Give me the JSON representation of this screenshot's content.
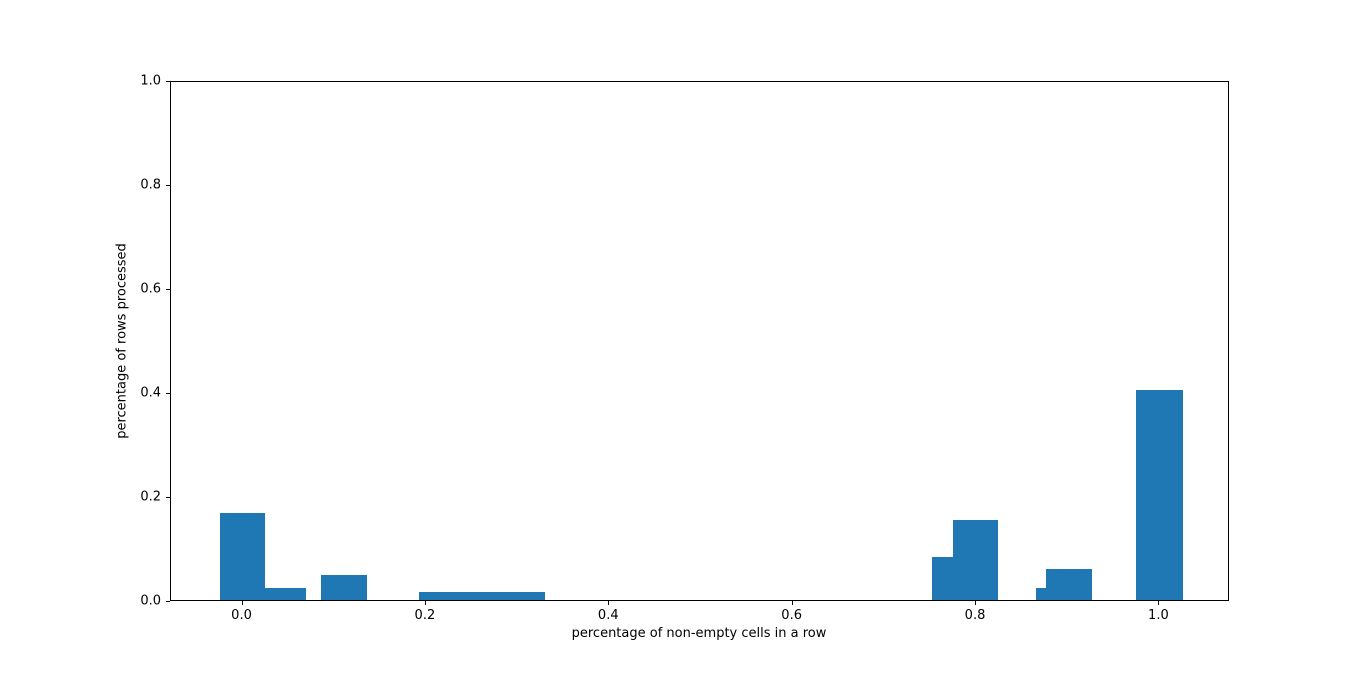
{
  "figure": {
    "background": "#ffffff",
    "bar_color": "#1f77b4",
    "spine_color": "#000000",
    "text_color": "#000000"
  },
  "chart_data": {
    "type": "bar",
    "title": "",
    "xlabel": "percentage of non-empty cells in a row",
    "ylabel": "percentage of rows processed",
    "xlim": [
      -0.078,
      1.077
    ],
    "ylim": [
      0.0,
      1.0
    ],
    "grid": false,
    "legend": null,
    "x_ticks": [
      0.0,
      0.2,
      0.4,
      0.6,
      0.8,
      1.0
    ],
    "x_tick_labels": [
      "0.0",
      "0.2",
      "0.4",
      "0.6",
      "0.8",
      "1.0"
    ],
    "y_ticks": [
      0.0,
      0.2,
      0.4,
      0.6,
      0.8,
      1.0
    ],
    "y_tick_labels": [
      "0.0",
      "0.2",
      "0.4",
      "0.6",
      "0.8",
      "1.0"
    ],
    "bar_width": 0.05,
    "bars": [
      {
        "x_left": -0.025,
        "x_right": 0.024,
        "height": 0.168
      },
      {
        "x_left": 0.024,
        "x_right": 0.069,
        "height": 0.023
      },
      {
        "x_left": 0.086,
        "x_right": 0.136,
        "height": 0.048
      },
      {
        "x_left": 0.192,
        "x_right": 0.33,
        "height": 0.015
      },
      {
        "x_left": 0.752,
        "x_right": 0.775,
        "height": 0.083
      },
      {
        "x_left": 0.775,
        "x_right": 0.824,
        "height": 0.154
      },
      {
        "x_left": 0.865,
        "x_right": 0.876,
        "height": 0.023
      },
      {
        "x_left": 0.876,
        "x_right": 0.926,
        "height": 0.06
      },
      {
        "x_left": 0.975,
        "x_right": 1.026,
        "height": 0.404
      }
    ]
  }
}
